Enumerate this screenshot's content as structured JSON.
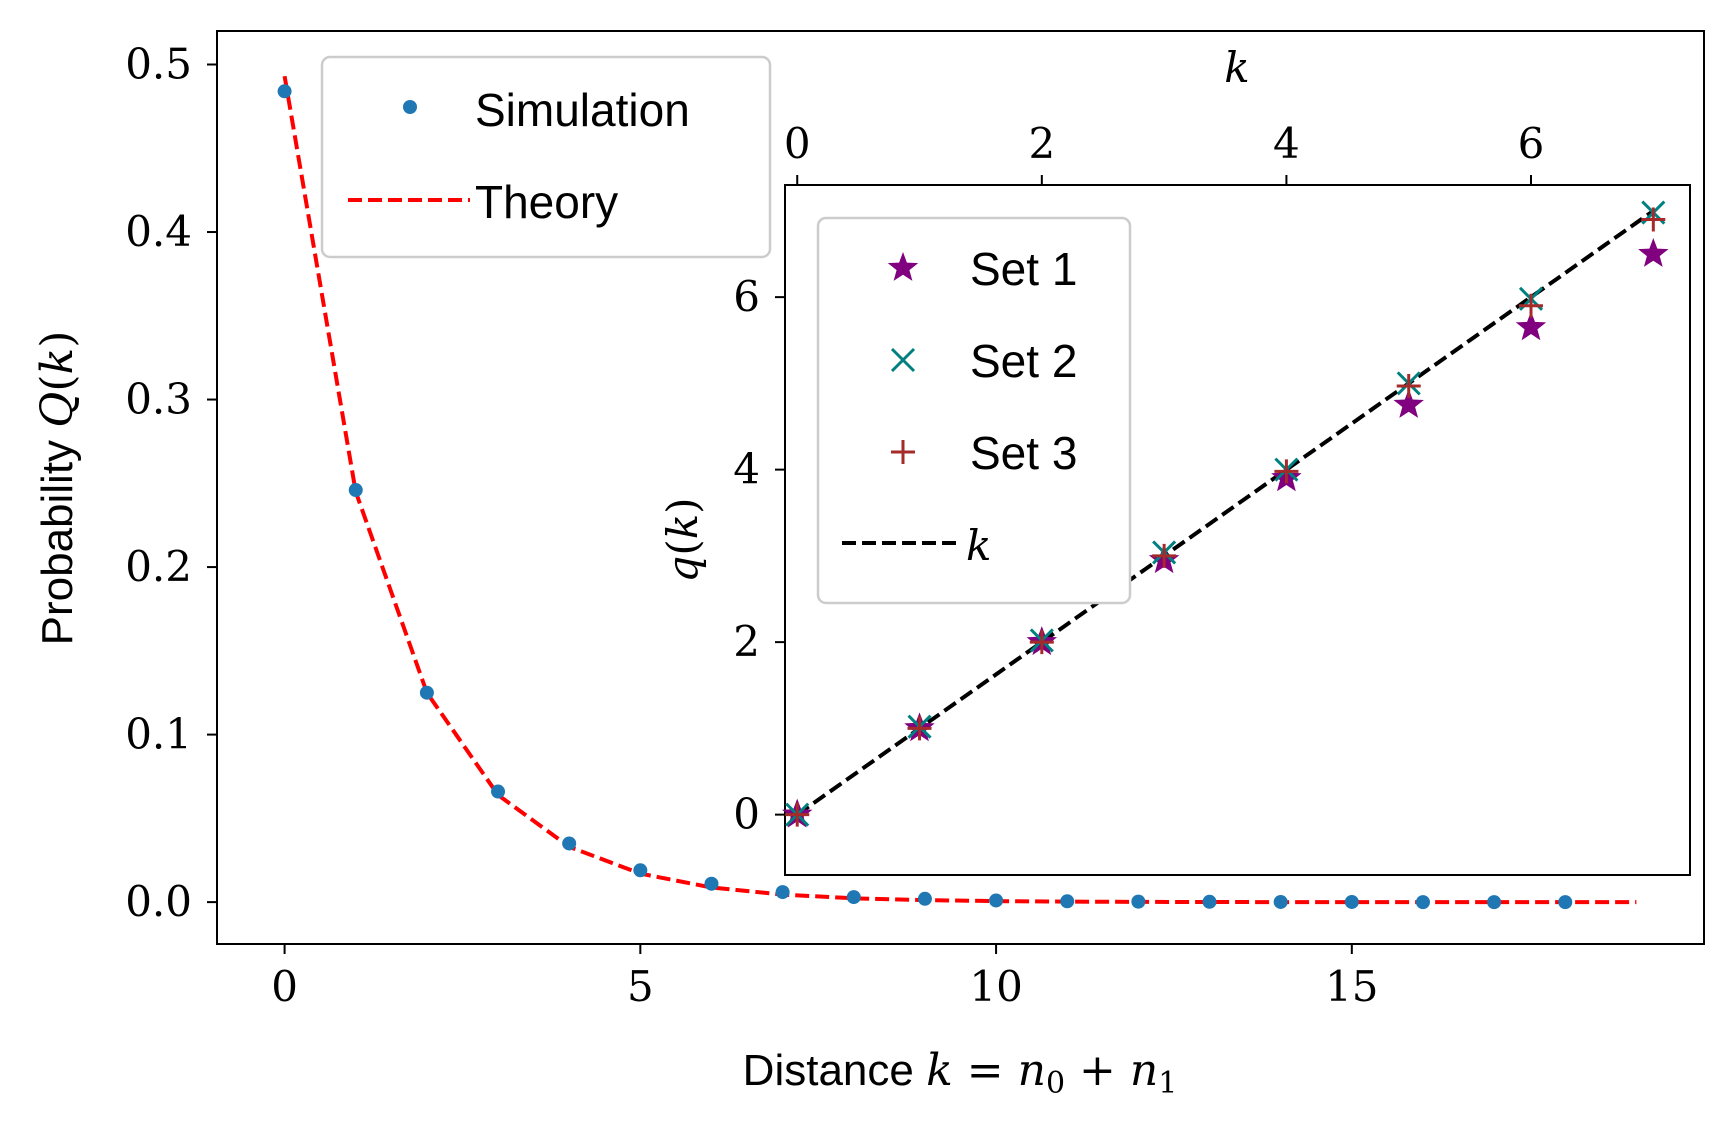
{
  "colors": {
    "simulation": "#1f77b4",
    "theory": "#ff0000",
    "set1": "#800080",
    "set2": "#008080",
    "set3": "#a52a2a",
    "identity": "#000000"
  },
  "chart_data": [
    {
      "type": "line",
      "name": "main",
      "xlabel": {
        "text": "Distance ",
        "math_var": "k",
        "math_eq": " = ",
        "n0": "n",
        "n0_sub": "0",
        "plus": " + ",
        "n1": "n",
        "n1_sub": "1"
      },
      "ylabel": {
        "text": "Probability ",
        "math_fn": "Q",
        "open": "(",
        "var": "k",
        "close": ")"
      },
      "xlim": [
        -0.95,
        19.95
      ],
      "ylim": [
        -0.025,
        0.52
      ],
      "xticks": [
        0,
        5,
        10,
        15
      ],
      "xtick_labels": [
        "0",
        "5",
        "10",
        "15"
      ],
      "yticks": [
        0.0,
        0.1,
        0.2,
        0.3,
        0.4,
        0.5
      ],
      "ytick_labels": [
        "0.0",
        "0.1",
        "0.2",
        "0.3",
        "0.4",
        "0.5"
      ],
      "legend": {
        "position": "upper-left",
        "entries": [
          "Simulation",
          "Theory"
        ]
      },
      "series": [
        {
          "name": "Simulation",
          "style": "dots",
          "x": [
            0,
            1,
            2,
            3,
            4,
            5,
            6,
            7,
            8,
            9,
            10,
            11,
            12,
            13,
            14,
            15,
            16,
            17,
            18
          ],
          "y": [
            0.484,
            0.246,
            0.125,
            0.066,
            0.035,
            0.019,
            0.011,
            0.006,
            0.003,
            0.002,
            0.001,
            0.0005,
            0.0003,
            0.0002,
            0.0001,
            0.0001,
            0.0,
            0.0,
            0.0
          ]
        },
        {
          "name": "Theory",
          "style": "dashed",
          "x": [
            0,
            1,
            2,
            3,
            4,
            5,
            6,
            7,
            8,
            9,
            10,
            11,
            12,
            13,
            14,
            15,
            16,
            17,
            18,
            19
          ],
          "y": [
            0.493,
            0.245,
            0.125,
            0.064,
            0.033,
            0.017,
            0.0087,
            0.0045,
            0.0023,
            0.0012,
            0.0006,
            0.0003,
            0.00016,
            8e-05,
            4e-05,
            2e-05,
            1e-05,
            0.0,
            0.0,
            0.0
          ]
        }
      ]
    },
    {
      "type": "scatter",
      "name": "inset",
      "xlabel": {
        "math_var": "k"
      },
      "ylabel": {
        "math_fn": "q",
        "open": "(",
        "var": "k",
        "close": ")"
      },
      "xlim": [
        -0.1,
        7.3
      ],
      "ylim": [
        -0.7,
        7.3
      ],
      "xticks": [
        0,
        2,
        4,
        6
      ],
      "xtick_labels": [
        "0",
        "2",
        "4",
        "6"
      ],
      "yticks": [
        0,
        2,
        4,
        6
      ],
      "ytick_labels": [
        "0",
        "2",
        "4",
        "6"
      ],
      "xaxis_position": "top",
      "legend": {
        "position": "upper-left",
        "entries": [
          "Set 1",
          "Set 2",
          "Set 3"
        ],
        "line_entry_var": "k"
      },
      "series": [
        {
          "name": "Set 1",
          "marker": "star",
          "x": [
            0,
            1,
            2,
            3,
            4,
            5,
            6,
            7
          ],
          "y": [
            0.0,
            1.0,
            2.0,
            2.95,
            3.9,
            4.75,
            5.65,
            6.5
          ]
        },
        {
          "name": "Set 2",
          "marker": "x",
          "x": [
            0,
            1,
            2,
            3,
            4,
            5,
            6,
            7
          ],
          "y": [
            0.0,
            1.02,
            2.02,
            3.04,
            4.0,
            5.0,
            5.98,
            6.98
          ]
        },
        {
          "name": "Set 3",
          "marker": "plus",
          "x": [
            0,
            1,
            2,
            3,
            4,
            5,
            6,
            7
          ],
          "y": [
            0.0,
            1.0,
            2.0,
            3.0,
            3.98,
            4.97,
            5.9,
            6.9
          ]
        },
        {
          "name": "k",
          "style": "dashed",
          "x": [
            0,
            7
          ],
          "y": [
            0,
            7
          ]
        }
      ]
    }
  ]
}
